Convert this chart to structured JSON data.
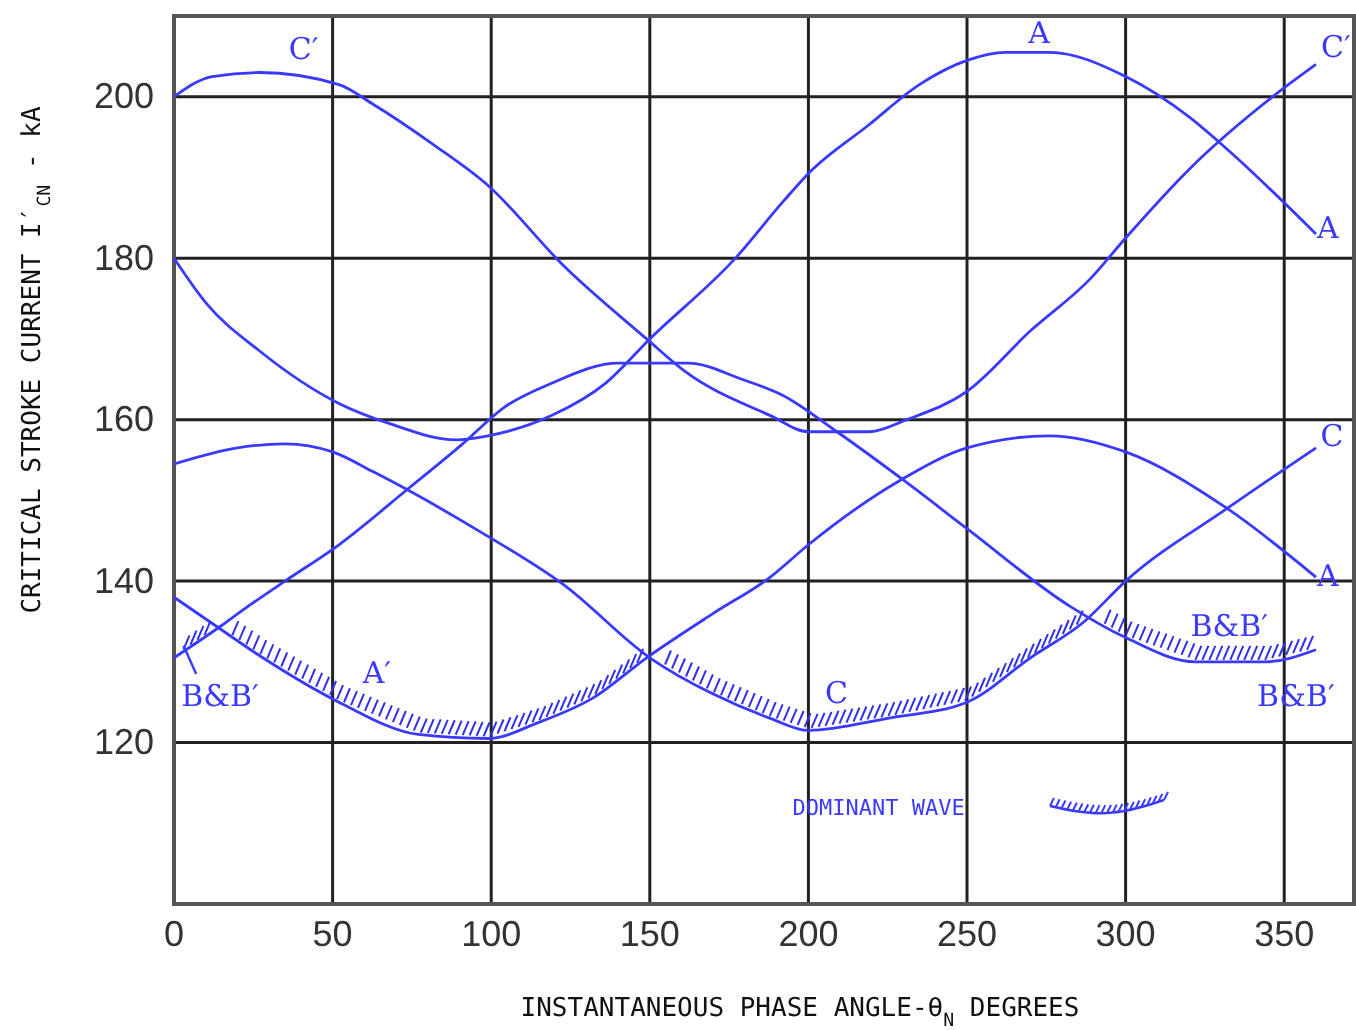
{
  "chart_data": {
    "type": "line",
    "xlabel": "INSTANTANEOUS PHASE ANGLE-θ$_{N}$ DEGREES",
    "ylabel": "CRITICAL STROKE CURRENT I′$_{CN}$ - kA",
    "xlim": [
      0,
      372
    ],
    "ylim": [
      100,
      210
    ],
    "xticks": [
      0,
      50,
      100,
      150,
      200,
      250,
      300,
      350
    ],
    "yticks": [
      120,
      140,
      160,
      180,
      200
    ],
    "grid": true,
    "marker": "none",
    "line_style": "solid",
    "series": [
      {
        "color": "#3a3aff",
        "x": [
          0,
          12,
          27,
          52,
          63,
          82,
          99,
          123,
          149,
          161,
          188,
          200,
          219,
          231,
          250,
          270,
          289,
          300,
          320,
          348,
          360
        ],
        "values": [
          200,
          202.5,
          203,
          201.5,
          199,
          194,
          189,
          179,
          170,
          166,
          160.5,
          158.5,
          158.5,
          160,
          163.5,
          171,
          177.5,
          182.5,
          191,
          200.5,
          204
        ]
      },
      {
        "color": "#3a3aff",
        "x": [
          0,
          10,
          27,
          52,
          68,
          89,
          99,
          119,
          136,
          150,
          177,
          192,
          200,
          219,
          235,
          250,
          262,
          276,
          300,
          320,
          332,
          360
        ],
        "values": [
          180,
          174.5,
          168.5,
          162,
          159.5,
          157.5,
          158,
          160.5,
          164.5,
          170,
          180,
          187,
          190.5,
          196.5,
          201.5,
          204.5,
          205.5,
          205.5,
          202.5,
          197.5,
          193.5,
          183
        ]
      },
      {
        "color": "#3a3aff",
        "x": [
          0,
          15,
          22,
          35,
          52,
          74,
          91,
          104,
          119,
          140,
          162,
          179,
          192,
          209,
          230,
          250,
          282,
          300,
          322,
          344,
          360
        ],
        "values": [
          130.5,
          134.5,
          136.5,
          140,
          144.5,
          151.5,
          157,
          161.5,
          164.5,
          167,
          167,
          165,
          163,
          158.5,
          152.5,
          146.5,
          137,
          133,
          130,
          130,
          131.5
        ]
      },
      {
        "color": "#3a3aff",
        "x": [
          0,
          20,
          35,
          50,
          63,
          97,
          123,
          150,
          170,
          188,
          200,
          225,
          250,
          270,
          287,
          300,
          332,
          360
        ],
        "values": [
          154.5,
          156.5,
          157,
          156,
          153.5,
          146,
          139.5,
          130.5,
          126,
          123,
          121.5,
          123,
          125,
          130.5,
          135,
          140,
          149,
          156.5
        ]
      },
      {
        "color": "#3a3aff",
        "x": [
          0,
          13,
          28,
          52,
          77,
          99,
          115,
          132,
          149,
          170,
          188,
          200,
          229,
          250,
          276,
          300,
          332,
          360
        ],
        "values": [
          138,
          134.5,
          130.5,
          125,
          121,
          120.5,
          122.5,
          125.5,
          130.5,
          136,
          140.5,
          144.5,
          152.5,
          156.5,
          158,
          156,
          149,
          140.5
        ]
      }
    ],
    "annotations": [
      {
        "text": "C′",
        "x": 27,
        "y": 203
      },
      {
        "text": "A",
        "x": 262,
        "y": 205.5
      },
      {
        "text": "C′",
        "x": 360,
        "y": 204
      },
      {
        "text": "A",
        "x": 360,
        "y": 183
      },
      {
        "text": "C",
        "x": 360,
        "y": 156.5
      },
      {
        "text": "A",
        "x": 360,
        "y": 140.5
      },
      {
        "text": "B&B′",
        "x": 322,
        "y": 130
      },
      {
        "text": "B&B′",
        "x": 360,
        "y": 131.5
      },
      {
        "text": "C",
        "x": 200,
        "y": 121.5
      },
      {
        "text": "A′",
        "x": 52,
        "y": 125
      },
      {
        "text": "B&B′",
        "x": 0,
        "y": 130.5
      },
      "DOMINANT WAVE"
    ]
  }
}
